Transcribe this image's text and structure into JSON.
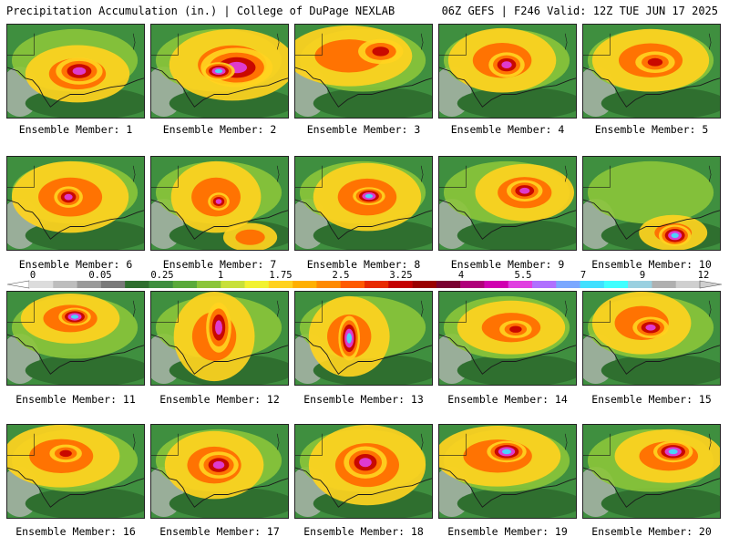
{
  "header": {
    "left": "Precipitation Accumulation (in.) | College of DuPage NEXLAB",
    "right": "06Z GEFS | F246 Valid: 12Z TUE JUN 17 2025"
  },
  "colorbar": {
    "tick_labels": [
      "0",
      "0.05",
      "0.25",
      "1",
      "1.75",
      "2.5",
      "3.25",
      "4",
      "5.5",
      "7",
      "9",
      "12"
    ],
    "colors": [
      "#dcdcdc",
      "#bdbdbd",
      "#9a9a9a",
      "#7a7a7a",
      "#2f6f2f",
      "#3f8f3f",
      "#5aaa3a",
      "#8bc53a",
      "#c8e03a",
      "#f2f230",
      "#ffd21f",
      "#ffb000",
      "#ff8a00",
      "#ff5a00",
      "#e82a00",
      "#c40000",
      "#9a0000",
      "#7a0030",
      "#b0007a",
      "#d000b0",
      "#e040e0",
      "#b070ff",
      "#7aa8ff",
      "#40e0ff",
      "#40ffff",
      "#9ad0e0",
      "#b0b0b0",
      "#cfcfcf"
    ]
  },
  "panels": [
    {
      "label": "Ensemble Member: 1"
    },
    {
      "label": "Ensemble Member: 2"
    },
    {
      "label": "Ensemble Member: 3"
    },
    {
      "label": "Ensemble Member: 4"
    },
    {
      "label": "Ensemble Member: 5"
    },
    {
      "label": "Ensemble Member: 6"
    },
    {
      "label": "Ensemble Member: 7"
    },
    {
      "label": "Ensemble Member: 8"
    },
    {
      "label": "Ensemble Member: 9"
    },
    {
      "label": "Ensemble Member: 10"
    },
    {
      "label": "Ensemble Member: 11"
    },
    {
      "label": "Ensemble Member: 12"
    },
    {
      "label": "Ensemble Member: 13"
    },
    {
      "label": "Ensemble Member: 14"
    },
    {
      "label": "Ensemble Member: 15"
    },
    {
      "label": "Ensemble Member: 16"
    },
    {
      "label": "Ensemble Member: 17"
    },
    {
      "label": "Ensemble Member: 18"
    },
    {
      "label": "Ensemble Member: 19"
    },
    {
      "label": "Ensemble Member: 20"
    }
  ]
}
